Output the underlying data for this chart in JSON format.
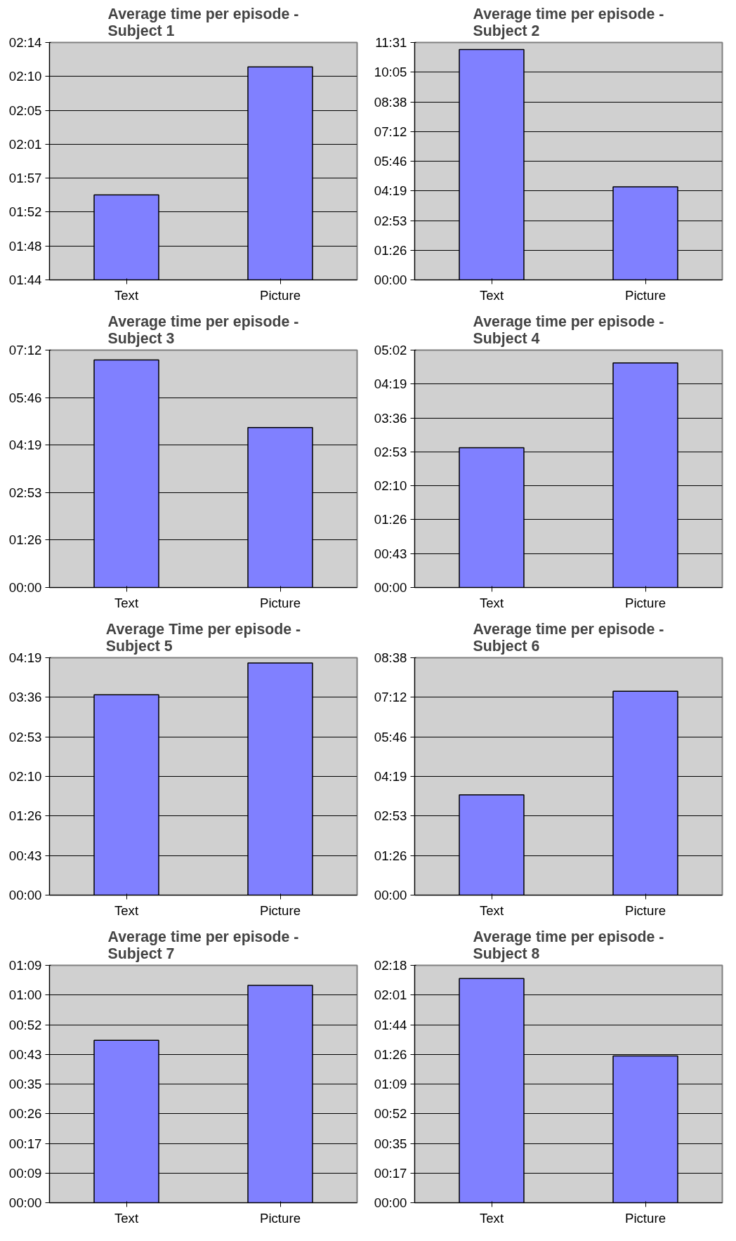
{
  "chart_data": [
    {
      "type": "bar",
      "title": "Average time per episode - Subject 1",
      "categories": [
        "Text",
        "Picture"
      ],
      "values": [
        114.5,
        130.8
      ],
      "color": "#8080ff",
      "ylim": [
        103.68,
        133.92
      ],
      "yticks": [
        {
          "value": 103.68,
          "label": "01:44"
        },
        {
          "value": 108.0,
          "label": "01:48"
        },
        {
          "value": 112.32,
          "label": "01:52"
        },
        {
          "value": 116.64,
          "label": "01:57"
        },
        {
          "value": 120.96,
          "label": "02:01"
        },
        {
          "value": 125.28,
          "label": "02:05"
        },
        {
          "value": 129.6,
          "label": "02:10"
        },
        {
          "value": 133.92,
          "label": "02:14"
        }
      ],
      "grid": "y"
    },
    {
      "type": "bar",
      "title": "Average time per episode - Subject 2",
      "categories": [
        "Text",
        "Picture"
      ],
      "values": [
        671,
        271
      ],
      "color": "#8080ff",
      "ylim": [
        0,
        691.2
      ],
      "yticks": [
        {
          "value": 0,
          "label": "00:00"
        },
        {
          "value": 86.4,
          "label": "01:26"
        },
        {
          "value": 172.8,
          "label": "02:53"
        },
        {
          "value": 259.2,
          "label": "04:19"
        },
        {
          "value": 345.6,
          "label": "05:46"
        },
        {
          "value": 432,
          "label": "07:12"
        },
        {
          "value": 518.4,
          "label": "08:38"
        },
        {
          "value": 604.8,
          "label": "10:05"
        },
        {
          "value": 691.2,
          "label": "11:31"
        }
      ],
      "grid": "y"
    },
    {
      "type": "bar",
      "title": "Average time per episode - Subject 3",
      "categories": [
        "Text",
        "Picture"
      ],
      "values": [
        414,
        291
      ],
      "color": "#8080ff",
      "ylim": [
        0,
        432
      ],
      "yticks": [
        {
          "value": 0,
          "label": "00:00"
        },
        {
          "value": 86.4,
          "label": "01:26"
        },
        {
          "value": 172.8,
          "label": "02:53"
        },
        {
          "value": 259.2,
          "label": "04:19"
        },
        {
          "value": 345.6,
          "label": "05:46"
        },
        {
          "value": 432,
          "label": "07:12"
        }
      ],
      "grid": "y"
    },
    {
      "type": "bar",
      "title": "Average time per episode - Subject 4",
      "categories": [
        "Text",
        "Picture"
      ],
      "values": [
        178,
        286
      ],
      "color": "#8080ff",
      "ylim": [
        0,
        302.4
      ],
      "yticks": [
        {
          "value": 0,
          "label": "00:00"
        },
        {
          "value": 43.2,
          "label": "00:43"
        },
        {
          "value": 86.4,
          "label": "01:26"
        },
        {
          "value": 129.6,
          "label": "02:10"
        },
        {
          "value": 172.8,
          "label": "02:53"
        },
        {
          "value": 216,
          "label": "03:36"
        },
        {
          "value": 259.2,
          "label": "04:19"
        },
        {
          "value": 302.4,
          "label": "05:02"
        }
      ],
      "grid": "y"
    },
    {
      "type": "bar",
      "title": "Average Time per episode - Subject 5",
      "categories": [
        "Text",
        "Picture"
      ],
      "values": [
        218.7,
        253.5
      ],
      "color": "#8080ff",
      "ylim": [
        0,
        259.2
      ],
      "yticks": [
        {
          "value": 0,
          "label": "00:00"
        },
        {
          "value": 43.2,
          "label": "00:43"
        },
        {
          "value": 86.4,
          "label": "01:26"
        },
        {
          "value": 129.6,
          "label": "02:10"
        },
        {
          "value": 172.8,
          "label": "02:53"
        },
        {
          "value": 216,
          "label": "03:36"
        },
        {
          "value": 259.2,
          "label": "04:19"
        }
      ],
      "grid": "y"
    },
    {
      "type": "bar",
      "title": "Average time per episode - Subject 6",
      "categories": [
        "Text",
        "Picture"
      ],
      "values": [
        219,
        445
      ],
      "color": "#8080ff",
      "ylim": [
        0,
        518.4
      ],
      "yticks": [
        {
          "value": 0,
          "label": "00:00"
        },
        {
          "value": 86.4,
          "label": "01:26"
        },
        {
          "value": 172.8,
          "label": "02:53"
        },
        {
          "value": 259.2,
          "label": "04:19"
        },
        {
          "value": 345.6,
          "label": "05:46"
        },
        {
          "value": 432,
          "label": "07:12"
        },
        {
          "value": 518.4,
          "label": "08:38"
        }
      ],
      "grid": "y"
    },
    {
      "type": "bar",
      "title": "Average time per episode - Subject 7",
      "categories": [
        "Text",
        "Picture"
      ],
      "values": [
        47.3,
        63.3
      ],
      "color": "#8080ff",
      "ylim": [
        0,
        69.12
      ],
      "yticks": [
        {
          "value": 0,
          "label": "00:00"
        },
        {
          "value": 8.64,
          "label": "00:09"
        },
        {
          "value": 17.28,
          "label": "00:17"
        },
        {
          "value": 25.92,
          "label": "00:26"
        },
        {
          "value": 34.56,
          "label": "00:35"
        },
        {
          "value": 43.2,
          "label": "00:43"
        },
        {
          "value": 51.84,
          "label": "00:52"
        },
        {
          "value": 60.48,
          "label": "01:00"
        },
        {
          "value": 69.12,
          "label": "01:09"
        }
      ],
      "grid": "y"
    },
    {
      "type": "bar",
      "title": "Average time per episode - Subject 8",
      "categories": [
        "Text",
        "Picture"
      ],
      "values": [
        130.6,
        85.5
      ],
      "color": "#8080ff",
      "ylim": [
        0,
        138.24
      ],
      "yticks": [
        {
          "value": 0,
          "label": "00:00"
        },
        {
          "value": 17.28,
          "label": "00:17"
        },
        {
          "value": 34.56,
          "label": "00:35"
        },
        {
          "value": 51.84,
          "label": "00:52"
        },
        {
          "value": 69.12,
          "label": "01:09"
        },
        {
          "value": 86.4,
          "label": "01:26"
        },
        {
          "value": 103.68,
          "label": "01:44"
        },
        {
          "value": 120.96,
          "label": "02:01"
        },
        {
          "value": 138.24,
          "label": "02:18"
        }
      ],
      "grid": "y"
    }
  ]
}
